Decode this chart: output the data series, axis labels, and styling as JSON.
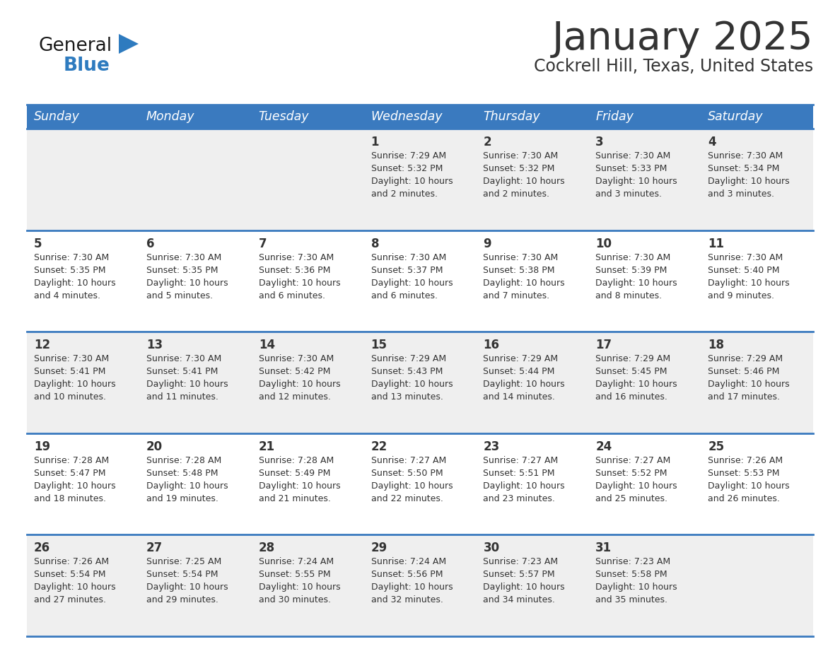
{
  "title": "January 2025",
  "subtitle": "Cockrell Hill, Texas, United States",
  "header_color": "#3a7abf",
  "header_text_color": "#ffffff",
  "day_names": [
    "Sunday",
    "Monday",
    "Tuesday",
    "Wednesday",
    "Thursday",
    "Friday",
    "Saturday"
  ],
  "row_bg_colors": [
    "#efefef",
    "#ffffff"
  ],
  "text_color": "#333333",
  "border_color": "#3a7abf",
  "logo_general_color": "#1a1a1a",
  "logo_blue_color": "#2e7bbf",
  "calendar_data": [
    [
      {
        "day": "",
        "info": ""
      },
      {
        "day": "",
        "info": ""
      },
      {
        "day": "",
        "info": ""
      },
      {
        "day": "1",
        "info": "Sunrise: 7:29 AM\nSunset: 5:32 PM\nDaylight: 10 hours\nand 2 minutes."
      },
      {
        "day": "2",
        "info": "Sunrise: 7:30 AM\nSunset: 5:32 PM\nDaylight: 10 hours\nand 2 minutes."
      },
      {
        "day": "3",
        "info": "Sunrise: 7:30 AM\nSunset: 5:33 PM\nDaylight: 10 hours\nand 3 minutes."
      },
      {
        "day": "4",
        "info": "Sunrise: 7:30 AM\nSunset: 5:34 PM\nDaylight: 10 hours\nand 3 minutes."
      }
    ],
    [
      {
        "day": "5",
        "info": "Sunrise: 7:30 AM\nSunset: 5:35 PM\nDaylight: 10 hours\nand 4 minutes."
      },
      {
        "day": "6",
        "info": "Sunrise: 7:30 AM\nSunset: 5:35 PM\nDaylight: 10 hours\nand 5 minutes."
      },
      {
        "day": "7",
        "info": "Sunrise: 7:30 AM\nSunset: 5:36 PM\nDaylight: 10 hours\nand 6 minutes."
      },
      {
        "day": "8",
        "info": "Sunrise: 7:30 AM\nSunset: 5:37 PM\nDaylight: 10 hours\nand 6 minutes."
      },
      {
        "day": "9",
        "info": "Sunrise: 7:30 AM\nSunset: 5:38 PM\nDaylight: 10 hours\nand 7 minutes."
      },
      {
        "day": "10",
        "info": "Sunrise: 7:30 AM\nSunset: 5:39 PM\nDaylight: 10 hours\nand 8 minutes."
      },
      {
        "day": "11",
        "info": "Sunrise: 7:30 AM\nSunset: 5:40 PM\nDaylight: 10 hours\nand 9 minutes."
      }
    ],
    [
      {
        "day": "12",
        "info": "Sunrise: 7:30 AM\nSunset: 5:41 PM\nDaylight: 10 hours\nand 10 minutes."
      },
      {
        "day": "13",
        "info": "Sunrise: 7:30 AM\nSunset: 5:41 PM\nDaylight: 10 hours\nand 11 minutes."
      },
      {
        "day": "14",
        "info": "Sunrise: 7:30 AM\nSunset: 5:42 PM\nDaylight: 10 hours\nand 12 minutes."
      },
      {
        "day": "15",
        "info": "Sunrise: 7:29 AM\nSunset: 5:43 PM\nDaylight: 10 hours\nand 13 minutes."
      },
      {
        "day": "16",
        "info": "Sunrise: 7:29 AM\nSunset: 5:44 PM\nDaylight: 10 hours\nand 14 minutes."
      },
      {
        "day": "17",
        "info": "Sunrise: 7:29 AM\nSunset: 5:45 PM\nDaylight: 10 hours\nand 16 minutes."
      },
      {
        "day": "18",
        "info": "Sunrise: 7:29 AM\nSunset: 5:46 PM\nDaylight: 10 hours\nand 17 minutes."
      }
    ],
    [
      {
        "day": "19",
        "info": "Sunrise: 7:28 AM\nSunset: 5:47 PM\nDaylight: 10 hours\nand 18 minutes."
      },
      {
        "day": "20",
        "info": "Sunrise: 7:28 AM\nSunset: 5:48 PM\nDaylight: 10 hours\nand 19 minutes."
      },
      {
        "day": "21",
        "info": "Sunrise: 7:28 AM\nSunset: 5:49 PM\nDaylight: 10 hours\nand 21 minutes."
      },
      {
        "day": "22",
        "info": "Sunrise: 7:27 AM\nSunset: 5:50 PM\nDaylight: 10 hours\nand 22 minutes."
      },
      {
        "day": "23",
        "info": "Sunrise: 7:27 AM\nSunset: 5:51 PM\nDaylight: 10 hours\nand 23 minutes."
      },
      {
        "day": "24",
        "info": "Sunrise: 7:27 AM\nSunset: 5:52 PM\nDaylight: 10 hours\nand 25 minutes."
      },
      {
        "day": "25",
        "info": "Sunrise: 7:26 AM\nSunset: 5:53 PM\nDaylight: 10 hours\nand 26 minutes."
      }
    ],
    [
      {
        "day": "26",
        "info": "Sunrise: 7:26 AM\nSunset: 5:54 PM\nDaylight: 10 hours\nand 27 minutes."
      },
      {
        "day": "27",
        "info": "Sunrise: 7:25 AM\nSunset: 5:54 PM\nDaylight: 10 hours\nand 29 minutes."
      },
      {
        "day": "28",
        "info": "Sunrise: 7:24 AM\nSunset: 5:55 PM\nDaylight: 10 hours\nand 30 minutes."
      },
      {
        "day": "29",
        "info": "Sunrise: 7:24 AM\nSunset: 5:56 PM\nDaylight: 10 hours\nand 32 minutes."
      },
      {
        "day": "30",
        "info": "Sunrise: 7:23 AM\nSunset: 5:57 PM\nDaylight: 10 hours\nand 34 minutes."
      },
      {
        "day": "31",
        "info": "Sunrise: 7:23 AM\nSunset: 5:58 PM\nDaylight: 10 hours\nand 35 minutes."
      },
      {
        "day": "",
        "info": ""
      }
    ]
  ],
  "fig_width": 11.88,
  "fig_height": 9.18,
  "dpi": 100
}
